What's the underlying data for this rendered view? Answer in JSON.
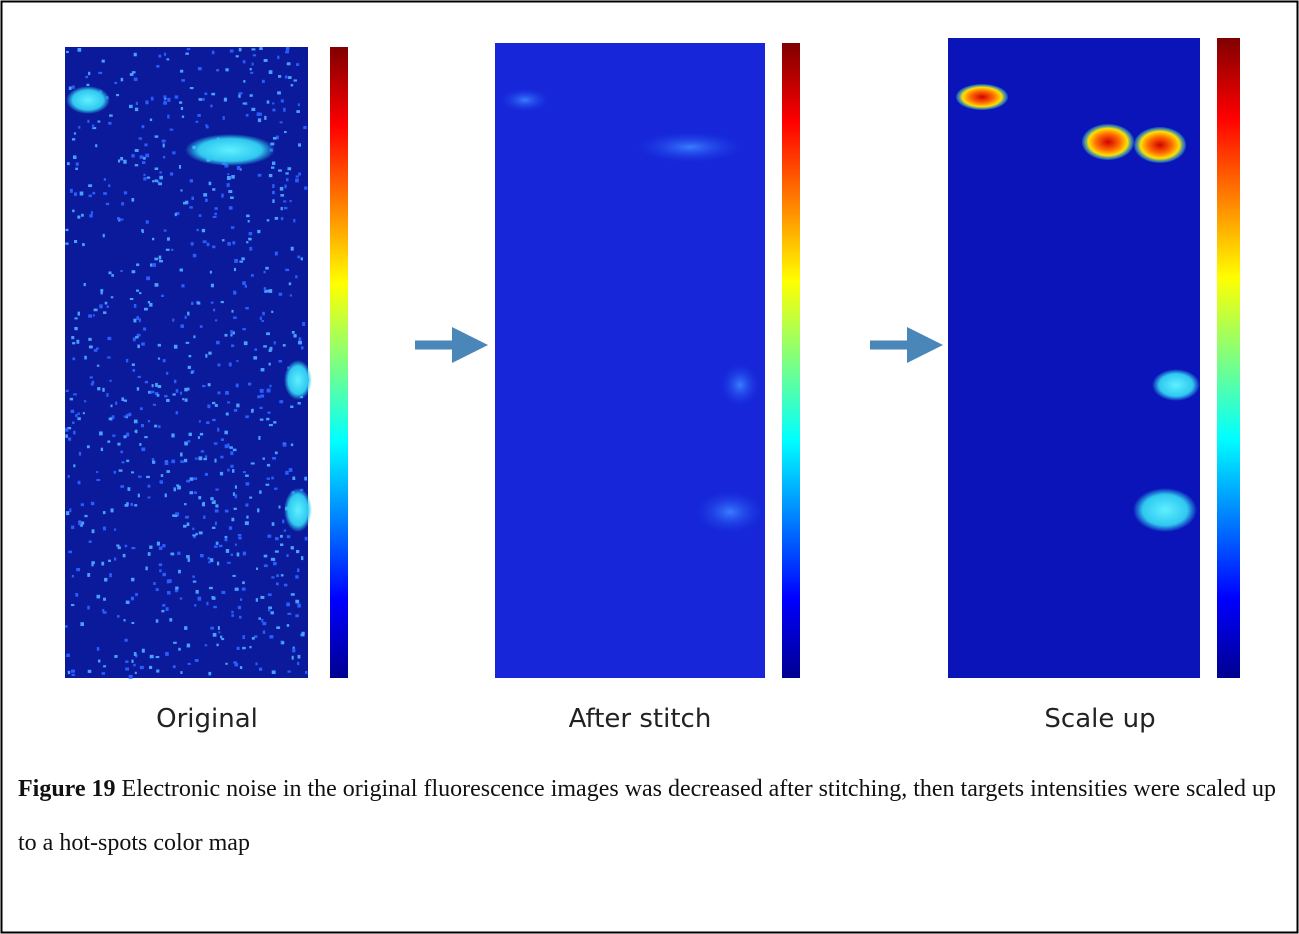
{
  "figure": {
    "panels": [
      {
        "label": "Original"
      },
      {
        "label": "After stitch"
      },
      {
        "label": "Scale up"
      }
    ],
    "caption": {
      "number": "Figure 19",
      "text": "Electronic noise in the original fluorescence images was decreased after stitching, then targets intensities were scaled up to a hot-spots color map"
    }
  }
}
